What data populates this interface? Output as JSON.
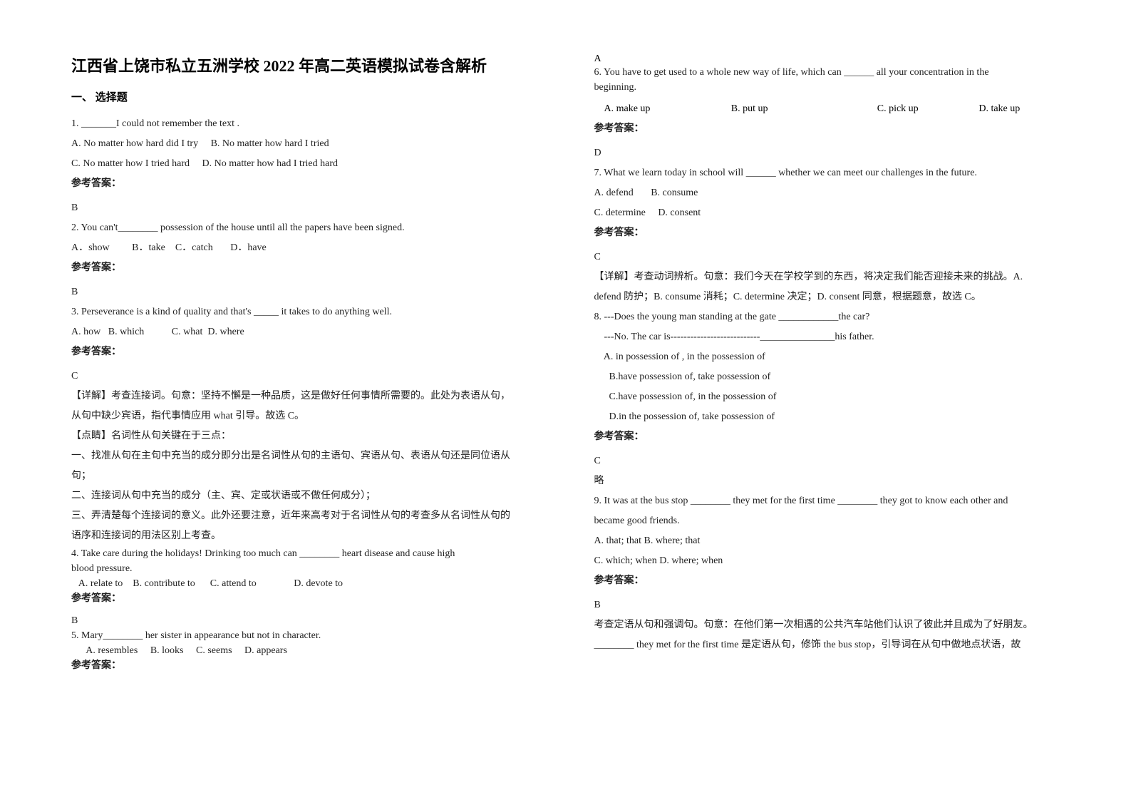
{
  "title": "江西省上饶市私立五洲学校 2022 年高二英语模拟试卷含解析",
  "section1": "一、 选择题",
  "answer_label": "参考答案：",
  "q1": {
    "stem": "1. _______I could not remember the text .",
    "optA": "A. No matter how hard did I try",
    "optB": "B. No matter how hard I tried",
    "optC": "C. No matter how I tried hard",
    "optD": "D. No matter how had I tried hard",
    "answer": "B"
  },
  "q2": {
    "stem": "2. You can't________ possession of the house until all the papers have been signed.",
    "optA": "A．show",
    "optB": "B．take",
    "optC": "C．catch",
    "optD": "D．have",
    "answer": "B"
  },
  "q3": {
    "stem": "3. Perseverance is a kind of quality and that's _____ it takes to do anything well.",
    "optA": "A. how",
    "optB": "B. which",
    "optC": "C. what",
    "optD": "D. where",
    "answer": "C",
    "explain1": "【详解】考查连接词。句意：坚持不懈是一种品质，这是做好任何事情所需要的。此处为表语从句，",
    "explain2": "从句中缺少宾语，指代事情应用 what 引导。故选 C。",
    "tip_header": "【点睛】名词性从句关键在于三点：",
    "tip1": "一、找准从句在主句中充当的成分即分出是名词性从句的主语句、宾语从句、表语从句还是同位语从",
    "tip1b": "句；",
    "tip2": "二、连接词从句中充当的成分（主、宾、定或状语或不做任何成分）；",
    "tip3": "三、弄清楚每个连接词的意义。此外还要注意，近年来高考对于名词性从句的考查多从名词性从句的",
    "tip3b": "语序和连接词的用法区别上考查。"
  },
  "q4": {
    "stem1": "4. Take care during the holidays! Drinking too much can ________ heart disease and cause high",
    "stem2": "blood pressure.",
    "opts": "   A. relate to    B. contribute to      C. attend to               D. devote to",
    "answer": "B"
  },
  "q5": {
    "stem": "5. Mary________ her sister in appearance but not in character.",
    "opts": "      A. resembles     B. looks     C. seems     D. appears",
    "answer": "A"
  },
  "q6": {
    "hand": "A",
    "stem1": "6.  You have to get used to a whole new way of life, which can ______ all your concentration in the",
    "stem2": "beginning.",
    "optA": "A. make up",
    "optB": "B. put up",
    "optC": "C. pick up",
    "optD": "D. take up",
    "answer": "D"
  },
  "q7": {
    "stem": "7. What we learn today in school will ______ whether we can meet our challenges in the future.",
    "optA": "A. defend",
    "optB": "B. consume",
    "optC": "C. determine",
    "optD": "D. consent",
    "answer": "C",
    "explain1": "【详解】考查动词辨析。句意：我们今天在学校学到的东西，将决定我们能否迎接未来的挑战。A.",
    "explain2": "defend 防护；B. consume 消耗；C. determine 决定；D. consent 同意，根据题意，故选 C。"
  },
  "q8": {
    "stem1": "8. ---Does the young man standing at the gate ____________the car?",
    "stem2": "    ---No. The car is---------------------------_______________his father.",
    "optA": "    A. in possession of , in the possession of",
    "optB": "      B.have possession of, take possession of",
    "optC": "      C.have possession of, in the possession of",
    "optD": "      D.in the possession of, take possession of",
    "answer": "C",
    "note": "略"
  },
  "q9": {
    "stem1": "9. It was at the bus stop ________ they met for the first time ________ they got to know each other and",
    "stem2": "became good friends.",
    "optsAB": "A. that; that   B. where; that",
    "optsCD": "C. which; when   D. where; when",
    "answer": "B",
    "explain1": "考查定语从句和强调句。句意：在他们第一次相遇的公共汽车站他们认识了彼此并且成为了好朋友。",
    "explain2": "________ they met for the first time 是定语从句，修饰 the bus stop，引导词在从句中做地点状语，故"
  }
}
